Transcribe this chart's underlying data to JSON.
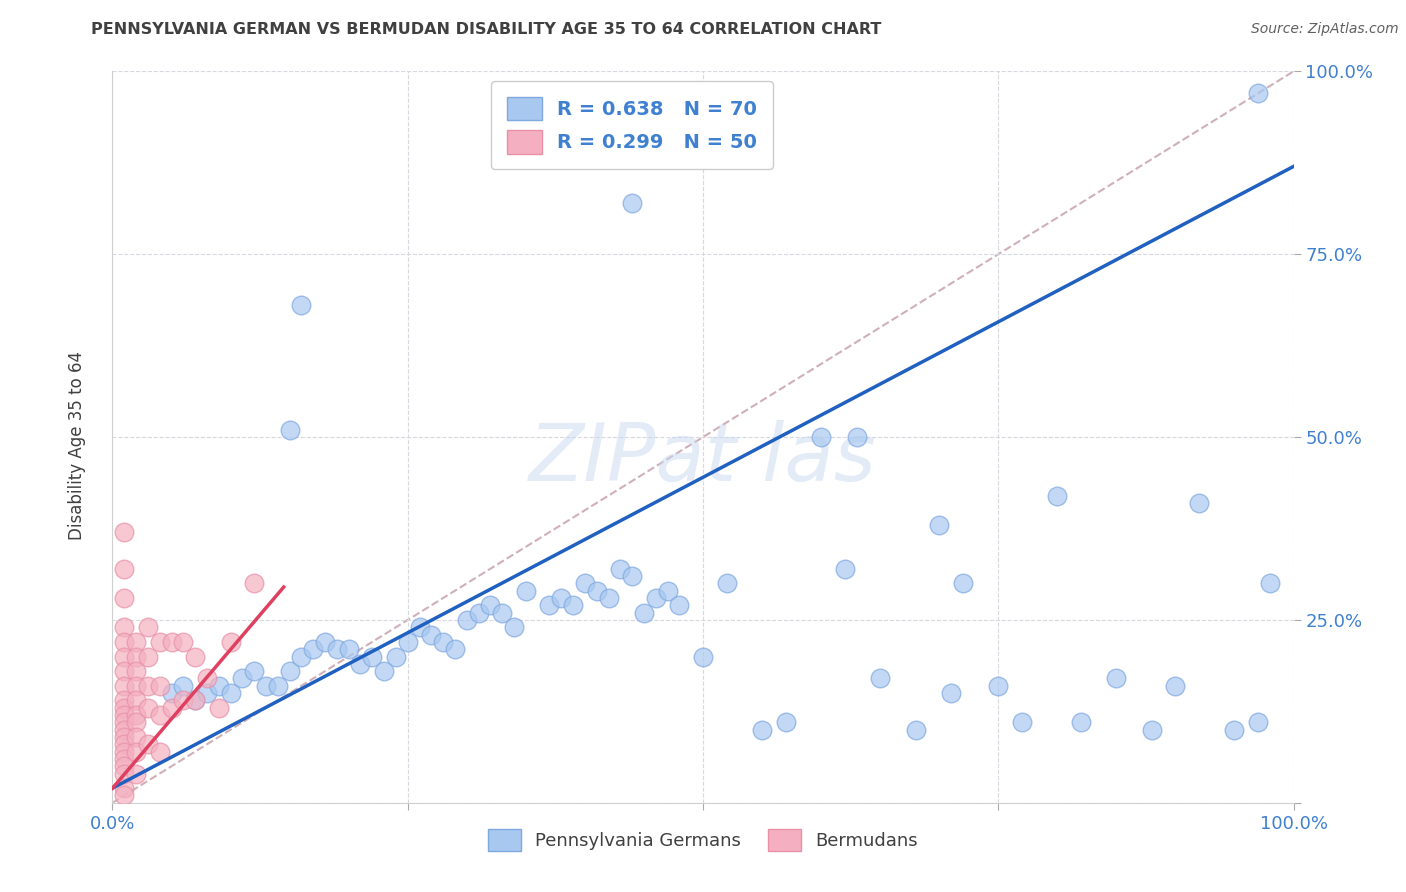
{
  "title": "PENNSYLVANIA GERMAN VS BERMUDAN DISABILITY AGE 35 TO 64 CORRELATION CHART",
  "source": "Source: ZipAtlas.com",
  "ylabel": "Disability Age 35 to 64",
  "bg_color": "#ffffff",
  "grid_color": "#d8d8e0",
  "blue_color": "#a8c8f0",
  "pink_color": "#f4b0c0",
  "blue_edge_color": "#80a8e0",
  "pink_edge_color": "#e890a8",
  "blue_line_color": "#2060c0",
  "pink_line_color": "#e04060",
  "dashed_line_color": "#d0b0b8",
  "axis_label_color": "#4080d0",
  "title_color": "#404040",
  "legend_R_N_color": "#4080d0",
  "watermark_color": "#c8d8f0",
  "R_blue": 0.638,
  "N_blue": 70,
  "R_pink": 0.299,
  "N_pink": 50,
  "blue_scatter_x": [
    0.97,
    0.44,
    0.16,
    0.05,
    0.06,
    0.07,
    0.08,
    0.09,
    0.1,
    0.11,
    0.12,
    0.13,
    0.14,
    0.15,
    0.16,
    0.17,
    0.18,
    0.19,
    0.2,
    0.21,
    0.22,
    0.23,
    0.24,
    0.25,
    0.26,
    0.27,
    0.28,
    0.29,
    0.3,
    0.31,
    0.32,
    0.33,
    0.34,
    0.35,
    0.37,
    0.38,
    0.39,
    0.4,
    0.41,
    0.42,
    0.43,
    0.44,
    0.45,
    0.46,
    0.47,
    0.48,
    0.5,
    0.52,
    0.55,
    0.57,
    0.6,
    0.62,
    0.63,
    0.65,
    0.68,
    0.7,
    0.71,
    0.72,
    0.75,
    0.77,
    0.8,
    0.82,
    0.85,
    0.88,
    0.9,
    0.92,
    0.95,
    0.97,
    0.98,
    0.15
  ],
  "blue_scatter_y": [
    0.97,
    0.82,
    0.68,
    0.15,
    0.16,
    0.14,
    0.15,
    0.16,
    0.15,
    0.17,
    0.18,
    0.16,
    0.16,
    0.18,
    0.2,
    0.21,
    0.22,
    0.21,
    0.21,
    0.19,
    0.2,
    0.18,
    0.2,
    0.22,
    0.24,
    0.23,
    0.22,
    0.21,
    0.25,
    0.26,
    0.27,
    0.26,
    0.24,
    0.29,
    0.27,
    0.28,
    0.27,
    0.3,
    0.29,
    0.28,
    0.32,
    0.31,
    0.26,
    0.28,
    0.29,
    0.27,
    0.2,
    0.3,
    0.1,
    0.11,
    0.5,
    0.32,
    0.5,
    0.17,
    0.1,
    0.38,
    0.15,
    0.3,
    0.16,
    0.11,
    0.42,
    0.11,
    0.17,
    0.1,
    0.16,
    0.41,
    0.1,
    0.11,
    0.3,
    0.51
  ],
  "pink_scatter_x": [
    0.01,
    0.01,
    0.01,
    0.01,
    0.01,
    0.01,
    0.01,
    0.01,
    0.01,
    0.01,
    0.01,
    0.01,
    0.01,
    0.01,
    0.01,
    0.01,
    0.01,
    0.01,
    0.01,
    0.01,
    0.02,
    0.02,
    0.02,
    0.02,
    0.02,
    0.02,
    0.02,
    0.02,
    0.02,
    0.02,
    0.03,
    0.03,
    0.03,
    0.03,
    0.03,
    0.04,
    0.04,
    0.04,
    0.04,
    0.05,
    0.05,
    0.06,
    0.06,
    0.07,
    0.07,
    0.08,
    0.09,
    0.1,
    0.12,
    0.01
  ],
  "pink_scatter_y": [
    0.37,
    0.32,
    0.28,
    0.24,
    0.22,
    0.2,
    0.18,
    0.16,
    0.14,
    0.13,
    0.12,
    0.11,
    0.1,
    0.09,
    0.08,
    0.07,
    0.06,
    0.05,
    0.04,
    0.02,
    0.22,
    0.2,
    0.18,
    0.16,
    0.14,
    0.12,
    0.11,
    0.09,
    0.07,
    0.04,
    0.24,
    0.2,
    0.16,
    0.13,
    0.08,
    0.22,
    0.16,
    0.12,
    0.07,
    0.22,
    0.13,
    0.22,
    0.14,
    0.2,
    0.14,
    0.17,
    0.13,
    0.22,
    0.3,
    0.01
  ],
  "blue_line_x": [
    0.0,
    1.0
  ],
  "blue_line_y": [
    0.02,
    0.87
  ],
  "pink_line_x": [
    0.0,
    0.145
  ],
  "pink_line_y": [
    0.02,
    0.295
  ],
  "dashed_line_x": [
    0.0,
    1.0
  ],
  "dashed_line_y": [
    0.0,
    1.0
  ],
  "xlim": [
    0.0,
    1.0
  ],
  "ylim": [
    0.0,
    1.0
  ],
  "xticks": [
    0.0,
    0.25,
    0.5,
    0.75,
    1.0
  ],
  "yticks": [
    0.0,
    0.25,
    0.5,
    0.75,
    1.0
  ],
  "xticklabels": [
    "0.0%",
    "",
    "",
    "",
    "100.0%"
  ],
  "yticklabels_right": [
    "",
    "25.0%",
    "50.0%",
    "75.0%",
    "100.0%"
  ],
  "legend_blue_label": "R = 0.638   N = 70",
  "legend_pink_label": "R = 0.299   N = 50",
  "bottom_legend_labels": [
    "Pennsylvania Germans",
    "Bermudans"
  ]
}
